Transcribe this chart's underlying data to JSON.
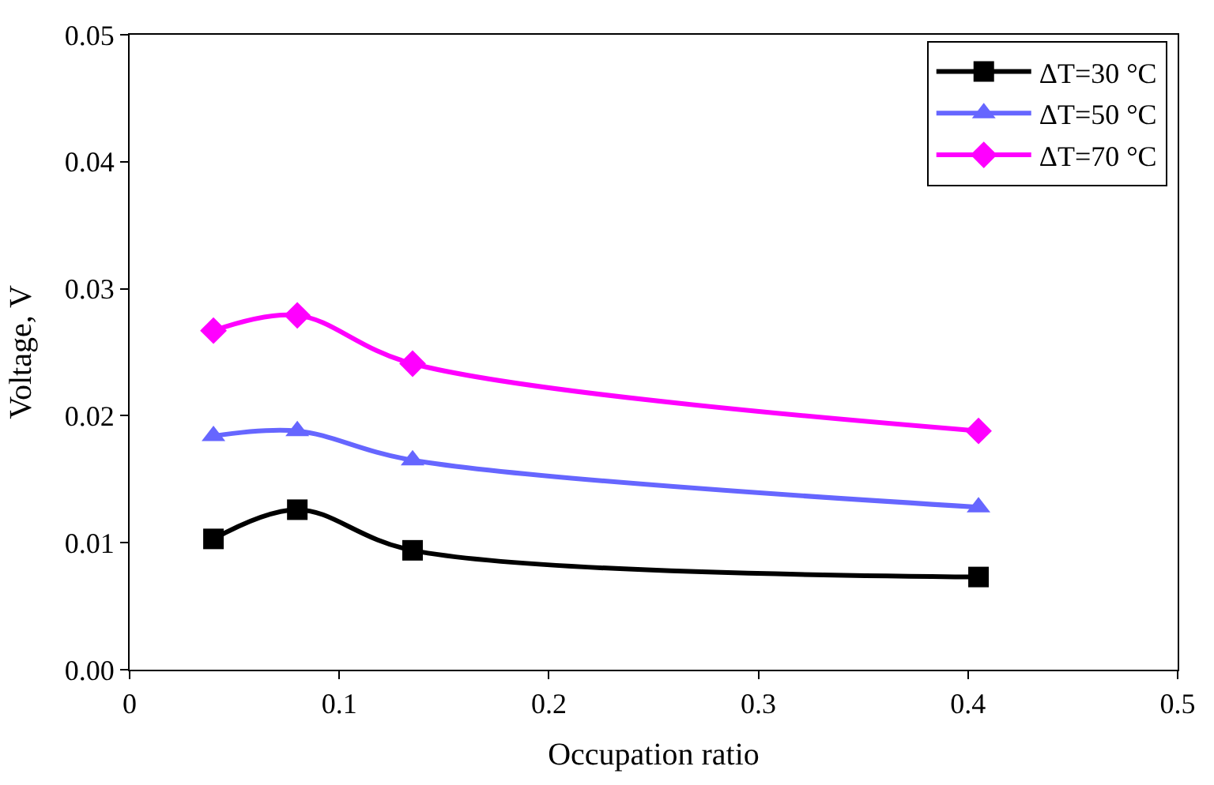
{
  "chart_data": {
    "type": "line",
    "xlabel": "Occupation ratio",
    "ylabel": "Voltage, V",
    "x": [
      0.04,
      0.08,
      0.135,
      0.405
    ],
    "series": [
      {
        "name": "ΔT=30 °C",
        "color": "#000000",
        "marker": "square",
        "values": [
          0.0103,
          0.0126,
          0.0094,
          0.0073
        ]
      },
      {
        "name": "ΔT=50 °C",
        "color": "#6666ff",
        "marker": "triangle",
        "values": [
          0.0184,
          0.0188,
          0.0165,
          0.0128
        ]
      },
      {
        "name": "ΔT=70 °C",
        "color": "#ff00ff",
        "marker": "diamond",
        "values": [
          0.0267,
          0.0279,
          0.0241,
          0.0188
        ]
      }
    ],
    "xlim": [
      0,
      0.5
    ],
    "xticks": [
      0,
      0.1,
      0.2,
      0.3,
      0.4,
      0.5
    ],
    "ylim": [
      0,
      0.05
    ],
    "yticks": [
      {
        "value": 0,
        "label": "0.00"
      },
      {
        "value": 0.01,
        "label": "0.01"
      },
      {
        "value": 0.02,
        "label": "0.02"
      },
      {
        "value": 0.03,
        "label": "0.03"
      },
      {
        "value": 0.04,
        "label": "0.04"
      },
      {
        "value": 0.05,
        "label": "0.05"
      }
    ],
    "legend": "top right"
  }
}
